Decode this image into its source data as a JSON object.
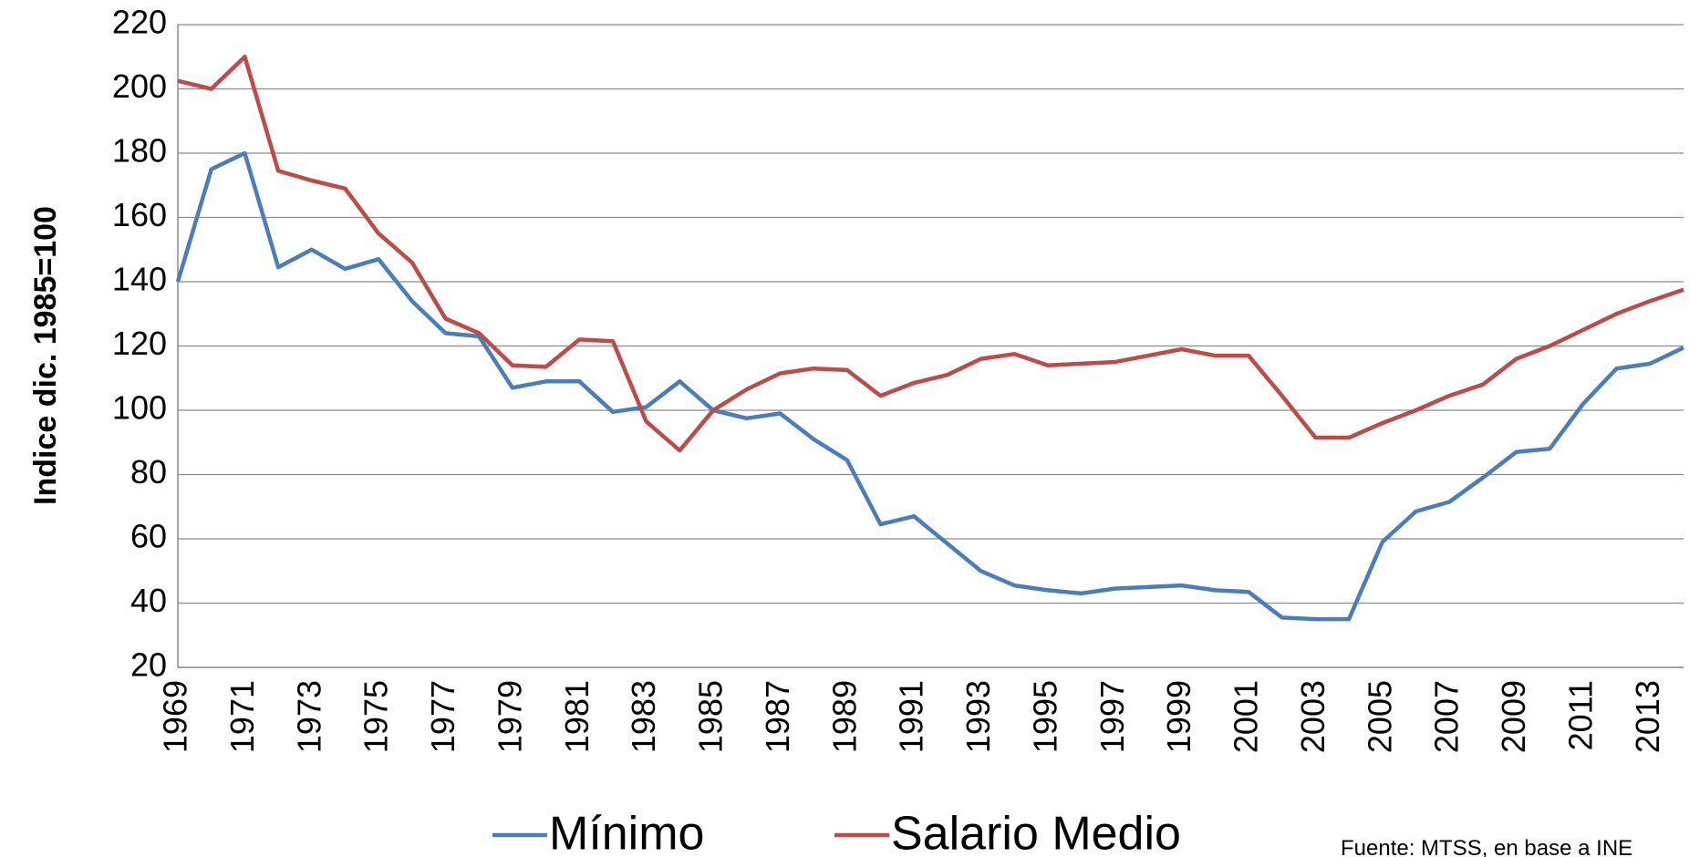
{
  "chart_data": {
    "type": "line",
    "y_label": "Indice dic. 1985=100",
    "source": "Fuente: MTSS, en base a INE",
    "categories": [
      "1969",
      null,
      "1971",
      null,
      "1973",
      null,
      "1975",
      null,
      "1977",
      null,
      "1979",
      null,
      "1981",
      null,
      "1983",
      null,
      "1985",
      null,
      "1987",
      null,
      "1989",
      null,
      "1991",
      null,
      "1993",
      null,
      "1995",
      null,
      "1997",
      null,
      "1999",
      null,
      "2001",
      null,
      "2003",
      null,
      "2005",
      null,
      "2007",
      null,
      "2009",
      null,
      "2011",
      null,
      "2013",
      null
    ],
    "series": [
      {
        "name": "Mínimo",
        "color": "#4a7ebb",
        "values": [
          140,
          175,
          180,
          144.5,
          150,
          144,
          147,
          134,
          124,
          123,
          107,
          109,
          109,
          99.5,
          101,
          109,
          100,
          97.5,
          99,
          91,
          84.5,
          64.5,
          67,
          58.5,
          50,
          45.5,
          44,
          43,
          44.5,
          45,
          45.5,
          44,
          43.5,
          35.5,
          35,
          35,
          59,
          68.5,
          71.5,
          79,
          87,
          88,
          102,
          113,
          114.5,
          119.5
        ]
      },
      {
        "name": "Salario Medio",
        "color": "#be4b48",
        "values": [
          202.5,
          200,
          210,
          174.5,
          171.5,
          169,
          155,
          146,
          128.5,
          124,
          114,
          113.5,
          122,
          121.5,
          96.5,
          87.5,
          100,
          106.5,
          111.5,
          113,
          112.5,
          104.5,
          108.5,
          111,
          116,
          117.5,
          114,
          114.5,
          115,
          117,
          119,
          117,
          117,
          104.5,
          91.5,
          91.5,
          96,
          100,
          104.5,
          108,
          116,
          120,
          125,
          130,
          134,
          137.5
        ]
      }
    ],
    "ylim": [
      20,
      220
    ],
    "yticks": [
      20,
      40,
      60,
      80,
      100,
      120,
      140,
      160,
      180,
      200,
      220
    ],
    "grid": true,
    "legend": "bottom"
  }
}
